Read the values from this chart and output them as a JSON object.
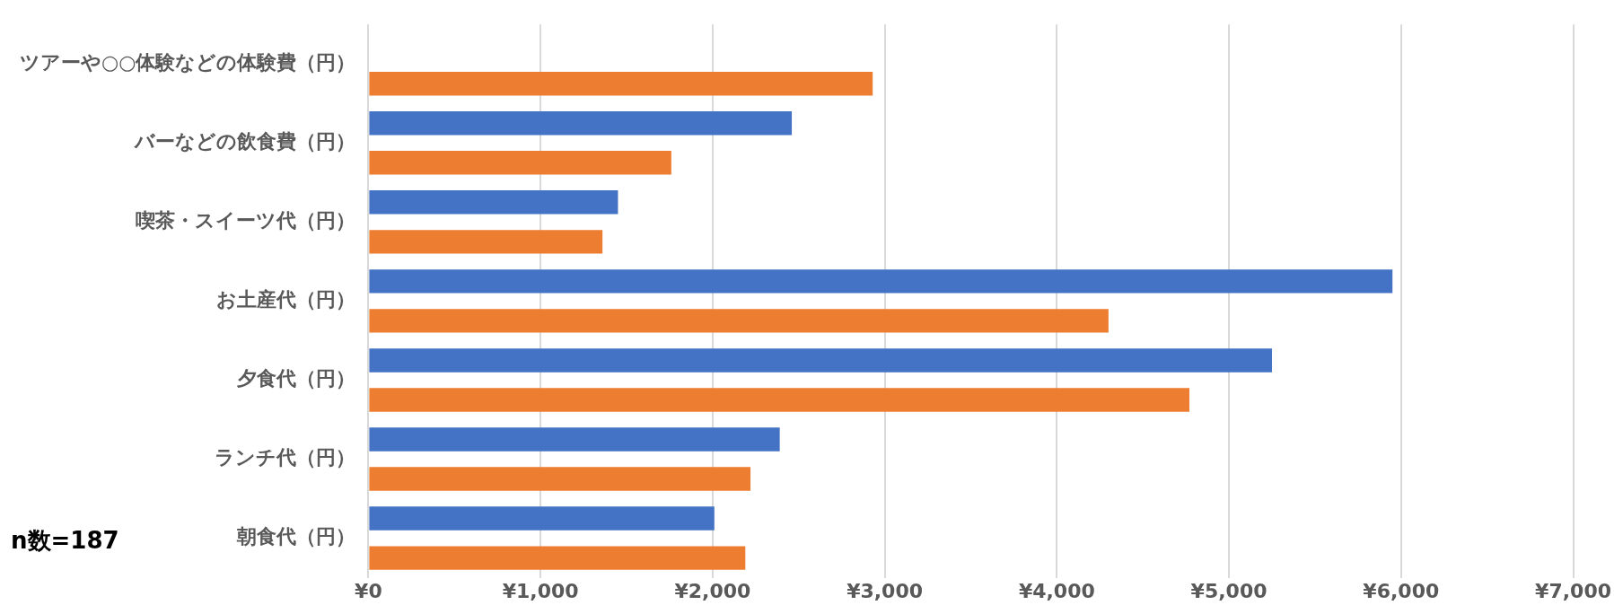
{
  "chart_data": {
    "type": "bar",
    "orientation": "horizontal",
    "categories": [
      "ツアーや○○体験などの体験費（円）",
      "バーなどの飲食費（円）",
      "喫茶・スイーツ代（円）",
      "お土産代（円）",
      "夕食代（円）",
      "ランチ代（円）",
      "朝食代（円）"
    ],
    "series": [
      {
        "color": "#4472c4",
        "values": [
          null,
          2460,
          1450,
          5950,
          5250,
          2390,
          2010
        ]
      },
      {
        "color": "#ed7d31",
        "values": [
          2930,
          1760,
          1360,
          4300,
          4770,
          2220,
          2190
        ]
      }
    ],
    "xlim": [
      0,
      7000
    ],
    "xticks": [
      {
        "value": 0,
        "label": "¥0"
      },
      {
        "value": 1000,
        "label": "¥1,000"
      },
      {
        "value": 2000,
        "label": "¥2,000"
      },
      {
        "value": 3000,
        "label": "¥3,000"
      },
      {
        "value": 4000,
        "label": "¥4,000"
      },
      {
        "value": 5000,
        "label": "¥5,000"
      },
      {
        "value": 6000,
        "label": "¥6,000"
      },
      {
        "value": 7000,
        "label": "¥7,000"
      }
    ],
    "grid": "x",
    "legend": false,
    "annotations": [
      "n数=187"
    ]
  }
}
